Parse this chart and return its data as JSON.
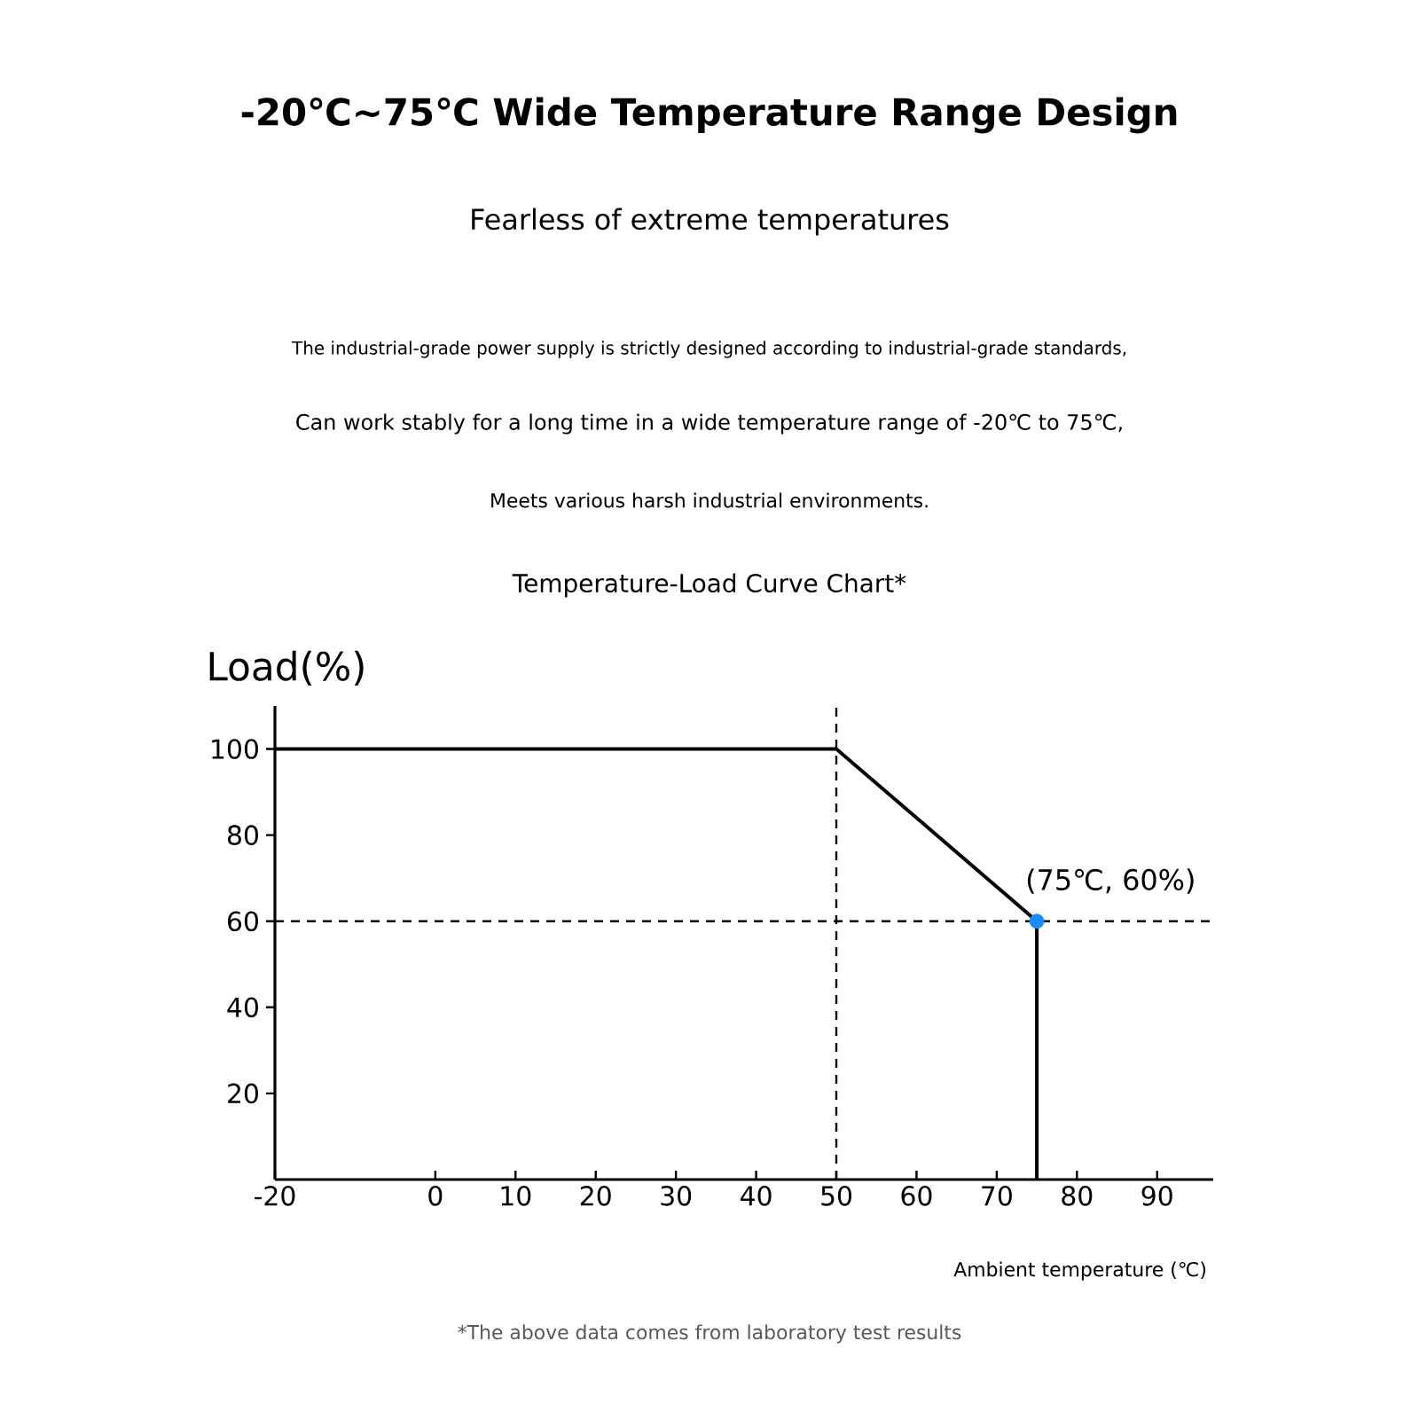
{
  "chart_data": {
    "type": "line",
    "title": "-20℃~75℃ Wide Temperature Range Design",
    "subtitle": "Fearless of extreme temperatures",
    "annotations": [
      "The industrial-grade power supply is strictly designed according to industrial-grade standards,",
      "Can work stably for a long time in a wide temperature range of -20℃ to 75℃,",
      "Meets various harsh industrial environments.",
      "Temperature-Load Curve Chart*",
      {
        "text": "(75℃, 60%)",
        "x": 75,
        "y": 60
      },
      "*The above data comes from laboratory test results"
    ],
    "xlabel": "Ambient temperature (℃)",
    "ylabel": "Load(%)",
    "series": [
      {
        "color": "#000000",
        "x": [
          -20,
          50,
          75,
          75
        ],
        "values": [
          100,
          100,
          60,
          0
        ],
        "marker": "none"
      },
      {
        "type": "scatter",
        "color": "#1a8cff",
        "x": [
          75
        ],
        "values": [
          60
        ],
        "marker": "circle"
      }
    ],
    "ref_lines": [
      {
        "axis": "x",
        "value": 50,
        "line_style": "dashed"
      },
      {
        "axis": "y",
        "value": 60,
        "line_style": "dashed"
      }
    ],
    "xlim": [
      -20,
      97
    ],
    "ylim": [
      0,
      110
    ],
    "xticks": [
      -20,
      0,
      10,
      20,
      30,
      40,
      50,
      60,
      70,
      80,
      90
    ],
    "yticks": [
      20,
      40,
      60,
      80,
      100
    ]
  }
}
